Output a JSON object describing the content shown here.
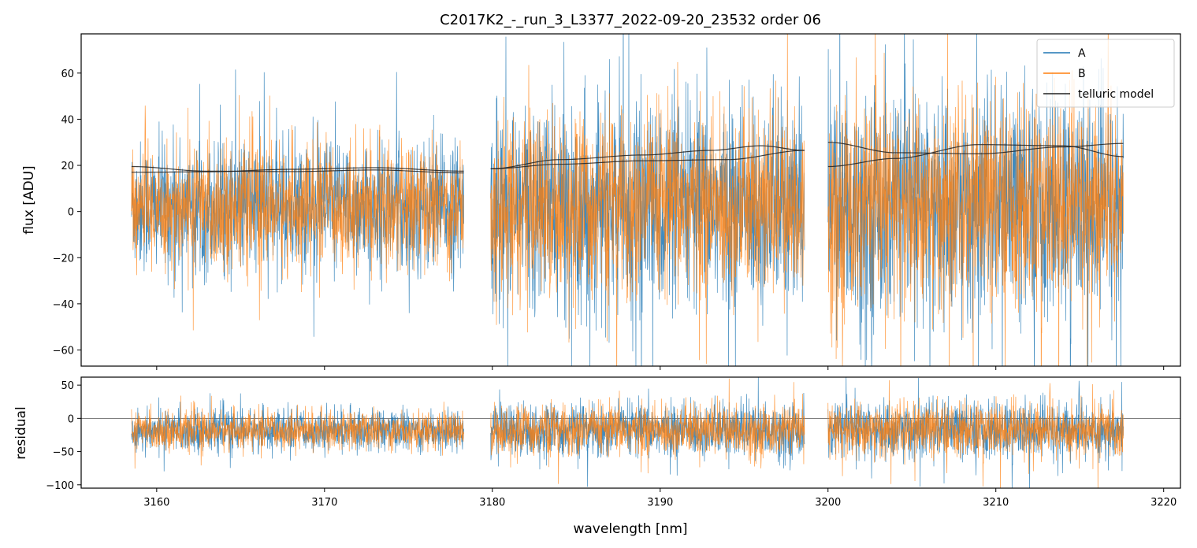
{
  "chart_data": {
    "type": "line",
    "title": "C2017K2_-_run_3_L3377_2022-09-20_23532  order 06",
    "xlabel": "wavelength [nm]",
    "xlim": [
      3155.5,
      3221
    ],
    "xticks": [
      3160,
      3170,
      3180,
      3190,
      3200,
      3210,
      3220
    ],
    "colors": {
      "A": "#1f77b4",
      "B": "#ff7f0e",
      "model": "#222222",
      "zero": "#555555"
    },
    "segments": [
      {
        "x": [
          3158.5,
          3178.3
        ]
      },
      {
        "x": [
          3179.9,
          3198.6
        ]
      },
      {
        "x": [
          3200.0,
          3217.6
        ]
      }
    ],
    "panels": [
      {
        "id": "flux",
        "ylabel": "flux [ADU]",
        "ylim": [
          -67,
          77
        ],
        "yticks": [
          -60,
          -40,
          -20,
          0,
          20,
          40,
          60
        ],
        "ytick_labels": [
          "−60",
          "−40",
          "−20",
          "0",
          "20",
          "40",
          "60"
        ],
        "series": [
          {
            "name": "A",
            "key": "A",
            "noise_sigma": [
              14,
              22,
              25
            ],
            "offset": [
              2,
              2,
              2
            ]
          },
          {
            "name": "B",
            "key": "B",
            "noise_sigma": [
              13,
              20,
              23
            ],
            "offset": [
              2,
              2,
              2
            ]
          }
        ],
        "telluric_model": {
          "name": "telluric model",
          "curves": [
            [
              {
                "x": [
                  3158.5,
                  3163,
                  3168,
                  3173,
                  3178.3
                ],
                "y": [
                  19.5,
                  17.5,
                  17.3,
                  18.0,
                  16.7
                ]
              },
              {
                "x": [
                  3158.5,
                  3163,
                  3168,
                  3173,
                  3178.3
                ],
                "y": [
                  17.0,
                  17.2,
                  18.3,
                  19.0,
                  17.5
                ]
              }
            ],
            [
              {
                "x": [
                  3179.9,
                  3184,
                  3189,
                  3193,
                  3196,
                  3198.6
                ],
                "y": [
                  18.5,
                  22.5,
                  24.5,
                  26.5,
                  28.5,
                  26.5
                ]
              },
              {
                "x": [
                  3179.9,
                  3184,
                  3189,
                  3194,
                  3198.6
                ],
                "y": [
                  18.5,
                  20.5,
                  22.0,
                  22.5,
                  26.5
                ]
              }
            ],
            [
              {
                "x": [
                  3200,
                  3204,
                  3209,
                  3214,
                  3217.6
                ],
                "y": [
                  30.0,
                  25.5,
                  25.0,
                  28.0,
                  29.5
                ]
              },
              {
                "x": [
                  3200,
                  3204,
                  3209,
                  3214,
                  3217.6
                ],
                "y": [
                  19.5,
                  23.0,
                  29.0,
                  28.5,
                  23.8
                ]
              }
            ]
          ]
        }
      },
      {
        "id": "residual",
        "ylabel": "residual",
        "ylim": [
          -105,
          62
        ],
        "yticks": [
          -100,
          -50,
          0,
          50
        ],
        "ytick_labels": [
          "−100",
          "−50",
          "0",
          "50"
        ],
        "series": [
          {
            "name": "A",
            "key": "A",
            "noise_sigma": [
              15,
              20,
              22
            ],
            "offset": [
              -18,
              -18,
              -18
            ]
          },
          {
            "name": "B",
            "key": "B",
            "noise_sigma": [
              14,
              19,
              21
            ],
            "offset": [
              -18,
              -18,
              -18
            ]
          }
        ],
        "zero_line": 0
      }
    ],
    "legend": {
      "position": "upper right",
      "entries": [
        {
          "label": "A",
          "key": "A"
        },
        {
          "label": "B",
          "key": "B"
        },
        {
          "label": "telluric model",
          "key": "model"
        }
      ]
    },
    "grid": false
  }
}
